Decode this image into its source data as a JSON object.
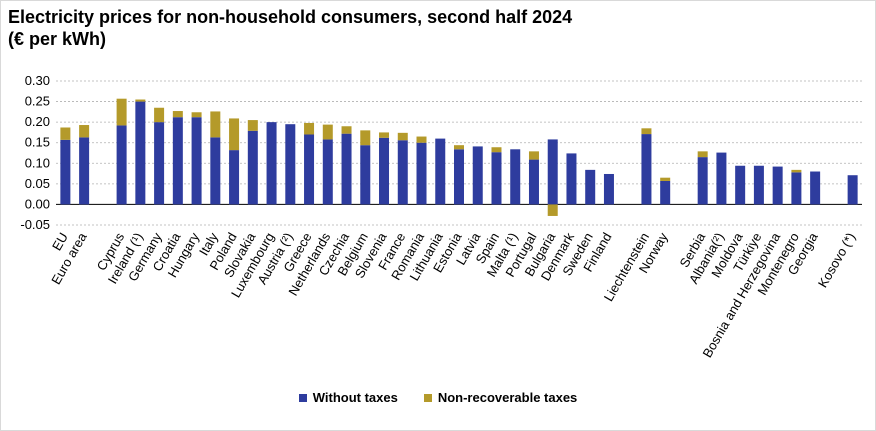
{
  "chart_data": {
    "type": "bar",
    "stacked": true,
    "title_line1": "Electricity prices for non-household consumers, second half 2024",
    "title_line2": "(€ per kWh)",
    "ylim": [
      -0.05,
      0.3
    ],
    "yticks": [
      "0.30",
      "0.25",
      "0.20",
      "0.15",
      "0.10",
      "0.05",
      "0.00",
      "-0.05"
    ],
    "ytick_values": [
      0.3,
      0.25,
      0.2,
      0.15,
      0.1,
      0.05,
      0.0,
      -0.05
    ],
    "grid": true,
    "legend_position": "bottom",
    "categories": [
      "EU",
      "Euro area",
      "",
      "Cyprus",
      "Ireland (¹)",
      "Germany",
      "Croatia",
      "Hungary",
      "Italy",
      "Poland",
      "Slovakia",
      "Luxembourg",
      "Austria (²)",
      "Greece",
      "Netherlands",
      "Czechia",
      "Belgium",
      "Slovenia",
      "France",
      "Romania",
      "Lithuania",
      "Estonia",
      "Latvia",
      "Spain",
      "Malta (¹)",
      "Portugal",
      "Bulgaria",
      "Denmark",
      "Sweden",
      "Finland",
      "",
      "Liechtenstein",
      "Norway",
      "",
      "Serbia",
      "Albania(²)",
      "Moldova",
      "Türkiye",
      "Bosnia and Herzegovina",
      "Montenegro",
      "Georgia",
      "",
      "Kosovo (*)"
    ],
    "series": [
      {
        "name": "Without taxes",
        "color": "#2e3c9e",
        "values": [
          0.157,
          0.163,
          null,
          0.192,
          0.25,
          0.2,
          0.212,
          0.212,
          0.163,
          0.132,
          0.179,
          0.2,
          0.195,
          0.17,
          0.158,
          0.172,
          0.144,
          0.162,
          0.156,
          0.15,
          0.16,
          0.134,
          0.141,
          0.127,
          0.134,
          0.109,
          0.158,
          0.124,
          0.084,
          0.074,
          null,
          0.171,
          0.057,
          null,
          0.115,
          0.126,
          0.094,
          0.094,
          0.092,
          0.078,
          0.08,
          null,
          0.071
        ]
      },
      {
        "name": "Non-recoverable taxes",
        "color": "#b49a2a",
        "values": [
          0.03,
          0.03,
          null,
          0.065,
          0.005,
          0.035,
          0.015,
          0.012,
          0.063,
          0.077,
          0.026,
          0.0,
          0.0,
          0.028,
          0.036,
          0.018,
          0.036,
          0.013,
          0.018,
          0.015,
          0.0,
          0.01,
          0.0,
          0.012,
          0.0,
          0.02,
          -0.028,
          0.0,
          0.0,
          0.0,
          null,
          0.014,
          0.008,
          null,
          0.014,
          0.0,
          0.0,
          0.0,
          0.0,
          0.006,
          0.0,
          null,
          0.0
        ]
      }
    ]
  },
  "legend": {
    "without_taxes_label": "Without taxes",
    "nonrecoverable_label": "Non-recoverable taxes"
  }
}
